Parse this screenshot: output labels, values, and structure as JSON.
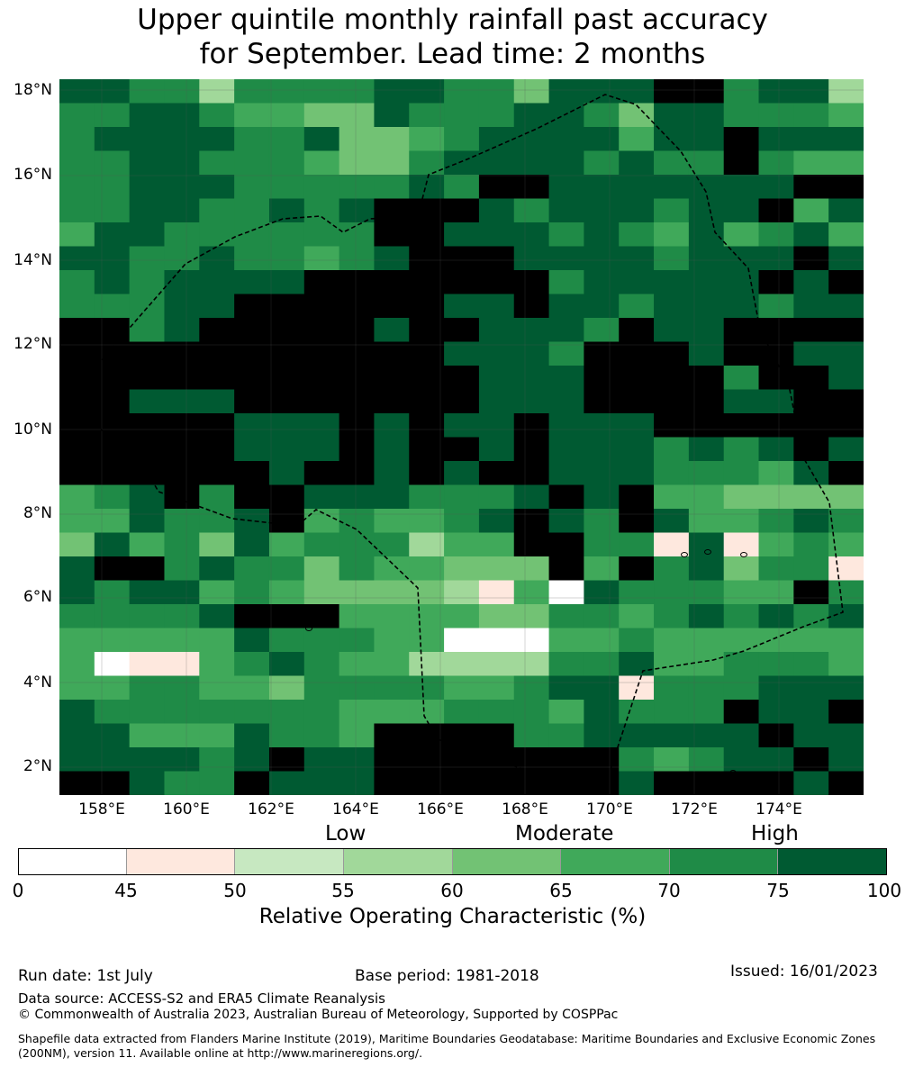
{
  "title": {
    "line1": "Upper quintile monthly rainfall past accuracy",
    "line2": "for September. Lead time: 2 months"
  },
  "map": {
    "lat_labels": [
      "18°N",
      "16°N",
      "14°N",
      "12°N",
      "10°N",
      "8°N",
      "6°N",
      "4°N",
      "2°N"
    ],
    "lon_labels": [
      "158°E",
      "160°E",
      "162°E",
      "164°E",
      "166°E",
      "168°E",
      "170°E",
      "172°E",
      "174°E"
    ],
    "boundary_style": "black dashed EEZ line",
    "grid_rows": [
      "77663666677664777886773",
      "66776554476667764776665",
      "67777667445677775778777",
      "66776665446777767668655",
      "66777666667688777777788",
      "66776676788876777677857",
      "57766666688777676575675",
      "77667665678887777677787",
      "67677778888888677777878",
      "66677888888778776777677",
      "88678888878877768778888",
      "88888888888777688878877",
      "88888888888877788886887",
      "88777888888877788887788",
      "88888777878778777888888",
      "88888777878878777676787",
      "88888878878788777666578",
      "56786887776667878554444",
      "55766785655678768755676",
      "47564756663558866171565",
      "78867664655444858674661",
      "76775654444315076665586",
      "66667888555544665676767",
      "55555766655000556555555",
      "50115676553333667556665",
      "55665546666556771666777",
      "76666666555666576668778",
      "77555766588886677777877",
      "77776787788888886567787",
      "88766877788888887888878"
    ]
  },
  "legend": {
    "categories": [
      "Low",
      "Moderate",
      "High"
    ],
    "colors": [
      "#ffffff",
      "#fee8de",
      "#c7e8c1",
      "#a1d89a",
      "#72c274",
      "#40a95a",
      "#1f8b47",
      "#005a32"
    ],
    "ticks": [
      "0",
      "45",
      "50",
      "55",
      "60",
      "65",
      "70",
      "75",
      "100"
    ],
    "label": "Relative Operating Characteristic (%)"
  },
  "footer": {
    "run_date": "Run date: 1st July",
    "base_period": "Base period: 1981-2018",
    "issued": "Issued: 16/01/2023",
    "data_source": "Data source: ACCESS-S2 and ERA5 Climate Reanalysis",
    "copyright": "© Commonwealth of Australia 2023, Australian Bureau of Meteorology, Supported by COSPPac",
    "shapefile": "Shapefile data extracted from Flanders Marine Institute (2019), Maritime Boundaries Geodatabase: Maritime Boundaries and Exclusive Economic Zones (200NM), version 11. Available online at http://www.marineregions.org/."
  }
}
